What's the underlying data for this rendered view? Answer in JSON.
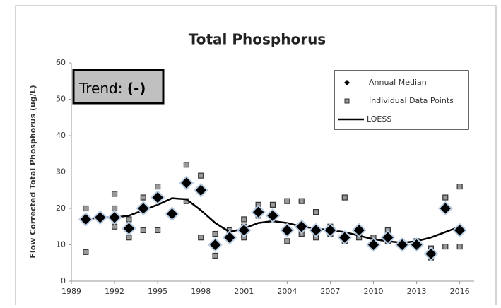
{
  "chart_data": {
    "type": "scatter",
    "title": "Total Phosphorus",
    "ylabel": "Flow Corrected Total Phosphorus (ug/L)",
    "annotation": {
      "label": "Trend:",
      "value": "(-)"
    },
    "legend": "upper right",
    "xlim": [
      1989,
      2017
    ],
    "xticks": [
      1989,
      1992,
      1995,
      1998,
      2001,
      2004,
      2007,
      2010,
      2013,
      2016
    ],
    "ylim": [
      0,
      60
    ],
    "yticks": [
      0,
      10,
      20,
      30,
      40,
      50,
      60
    ],
    "series": [
      {
        "name": "Annual Median",
        "marker": "diamond",
        "color": "#000000",
        "x": [
          1990,
          1991,
          1992,
          1993,
          1994,
          1995,
          1996,
          1997,
          1998,
          1999,
          2000,
          2001,
          2002,
          2003,
          2004,
          2005,
          2006,
          2007,
          2008,
          2009,
          2010,
          2011,
          2012,
          2013,
          2014,
          2015,
          2016
        ],
        "values": [
          17,
          17.5,
          17.5,
          14.5,
          20,
          23,
          18.5,
          27,
          25,
          10,
          12,
          14,
          19,
          18,
          14,
          15,
          14,
          14,
          12,
          14,
          10,
          12,
          10,
          10,
          7.5,
          20,
          14
        ]
      },
      {
        "name": "Individual Data Points",
        "marker": "square",
        "color": "#999999",
        "x": [
          1990,
          1990,
          1990,
          1991,
          1991,
          1992,
          1992,
          1992,
          1992,
          1993,
          1993,
          1993,
          1994,
          1994,
          1994,
          1995,
          1995,
          1995,
          1996,
          1997,
          1997,
          1998,
          1998,
          1998,
          1999,
          1999,
          1999,
          2000,
          2000,
          2001,
          2001,
          2001,
          2002,
          2002,
          2003,
          2003,
          2004,
          2004,
          2004,
          2005,
          2005,
          2005,
          2006,
          2006,
          2006,
          2007,
          2007,
          2007,
          2008,
          2008,
          2008,
          2009,
          2009,
          2010,
          2010,
          2011,
          2011,
          2012,
          2013,
          2013,
          2014,
          2014,
          2015,
          2015,
          2016,
          2016
        ],
        "values": [
          20,
          8,
          17,
          17,
          18,
          24,
          20,
          15,
          18,
          17,
          12,
          15,
          23,
          14,
          20,
          26,
          14,
          23,
          19,
          32,
          22,
          29,
          12,
          25,
          13,
          7,
          10,
          14,
          12,
          17,
          12,
          15,
          21,
          18,
          21,
          17,
          22,
          11,
          14,
          22,
          13,
          15,
          19,
          12,
          14,
          15,
          13,
          14,
          23,
          11,
          12,
          12,
          14,
          10,
          12,
          14,
          11,
          10,
          11,
          10,
          9,
          6.5,
          23,
          9.5,
          26,
          9.5
        ]
      },
      {
        "name": "LOESS",
        "marker": "line",
        "color": "#000000",
        "x": [
          1990,
          1991,
          1992,
          1993,
          1994,
          1995,
          1996,
          1997,
          1998,
          1999,
          2000,
          2001,
          2002,
          2003,
          2004,
          2005,
          2006,
          2007,
          2008,
          2009,
          2010,
          2011,
          2012,
          2013,
          2014,
          2015,
          2016
        ],
        "values": [
          17,
          17.5,
          17.5,
          18,
          19.5,
          21,
          22.8,
          22.5,
          19.5,
          16,
          13.5,
          14.5,
          16,
          16.5,
          16,
          15,
          14.5,
          14,
          13.5,
          12.5,
          11.5,
          11,
          10.5,
          11,
          12,
          13.5,
          15
        ]
      }
    ]
  }
}
